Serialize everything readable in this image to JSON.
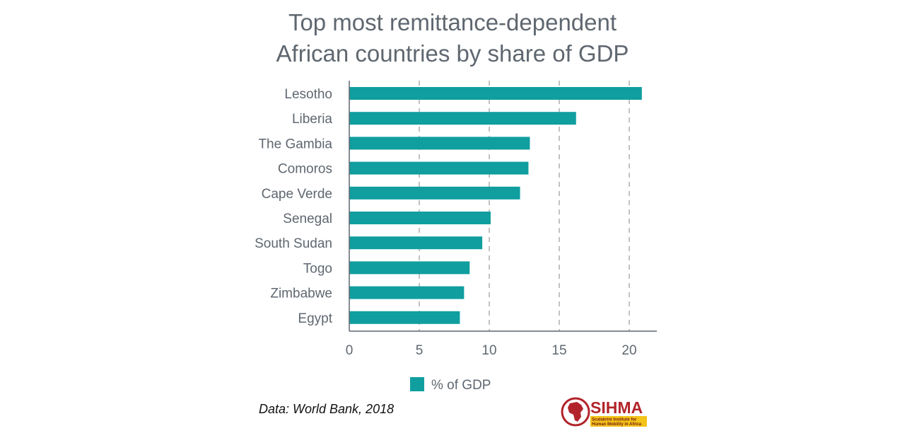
{
  "chart_data": {
    "type": "bar",
    "orientation": "horizontal",
    "title": "Top most remittance-dependent African countries by share of GDP",
    "title_lines": [
      "Top most remittance-dependent",
      "African countries by share of GDP"
    ],
    "categories": [
      "Lesotho",
      "Liberia",
      "The Gambia",
      "Comoros",
      "Cape Verde",
      "Senegal",
      "South Sudan",
      "Togo",
      "Zimbabwe",
      "Egypt"
    ],
    "series": [
      {
        "name": "% of GDP",
        "values": [
          20.9,
          16.2,
          12.9,
          12.8,
          12.2,
          10.1,
          9.5,
          8.6,
          8.2,
          7.9
        ]
      }
    ],
    "xlim": [
      0,
      22
    ],
    "xticks": [
      0,
      5,
      10,
      15,
      20
    ],
    "grid": "vertical dashed",
    "legend": "bottom-center",
    "bar_color": "#109e9f"
  },
  "source_note": "Data: World Bank, 2018",
  "logo": {
    "text": "SIHMA",
    "subtitle_line1": "Scalabrini Institute for",
    "subtitle_line2": "Human Mobility in Africa",
    "colors": {
      "red": "#b2242b",
      "yellow": "#f2c418"
    }
  },
  "colors": {
    "text": "#5f6770",
    "axis": "#5f6770",
    "grid": "#9a9a9a"
  }
}
